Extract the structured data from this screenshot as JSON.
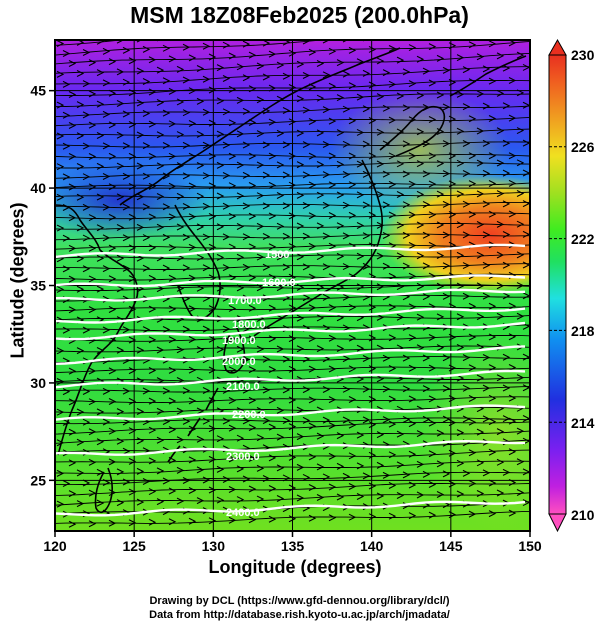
{
  "title": "MSM 18Z08Feb2025 (200.0hPa)",
  "xlabel": "Longitude (degrees)",
  "ylabel": "Latitude  (degrees)",
  "credit_line1": "Drawing by DCL (https://www.gfd-dennou.org/library/dcl/)",
  "credit_line2": "Data from http://database.rish.kyoto-u.ac.jp/arch/jmadata/",
  "map": {
    "lon_range": [
      120,
      150
    ],
    "lat_range": [
      22.4,
      47.6
    ],
    "x_ticks": [
      "120",
      "125",
      "130",
      "135",
      "140",
      "145",
      "150"
    ],
    "y_ticks": [
      "25",
      "30",
      "35",
      "40",
      "45"
    ],
    "contour_labels": [
      "1500",
      "1600.0",
      "1700.0",
      "1800.0",
      "1900.0",
      "2000.0",
      "2100.0",
      "2200.0",
      "2300.0",
      "2400.0"
    ]
  },
  "colorbar": {
    "labels": [
      "230",
      "226",
      "222",
      "218",
      "214",
      "210"
    ],
    "min": 210,
    "max": 230,
    "colors": [
      "#ff4fc0",
      "#c020e0",
      "#7a20f0",
      "#2030e0",
      "#1090f0",
      "#20e0e0",
      "#20e060",
      "#40ec20",
      "#a0e020",
      "#f0e020",
      "#f0a020",
      "#f06020",
      "#e83020"
    ]
  }
}
